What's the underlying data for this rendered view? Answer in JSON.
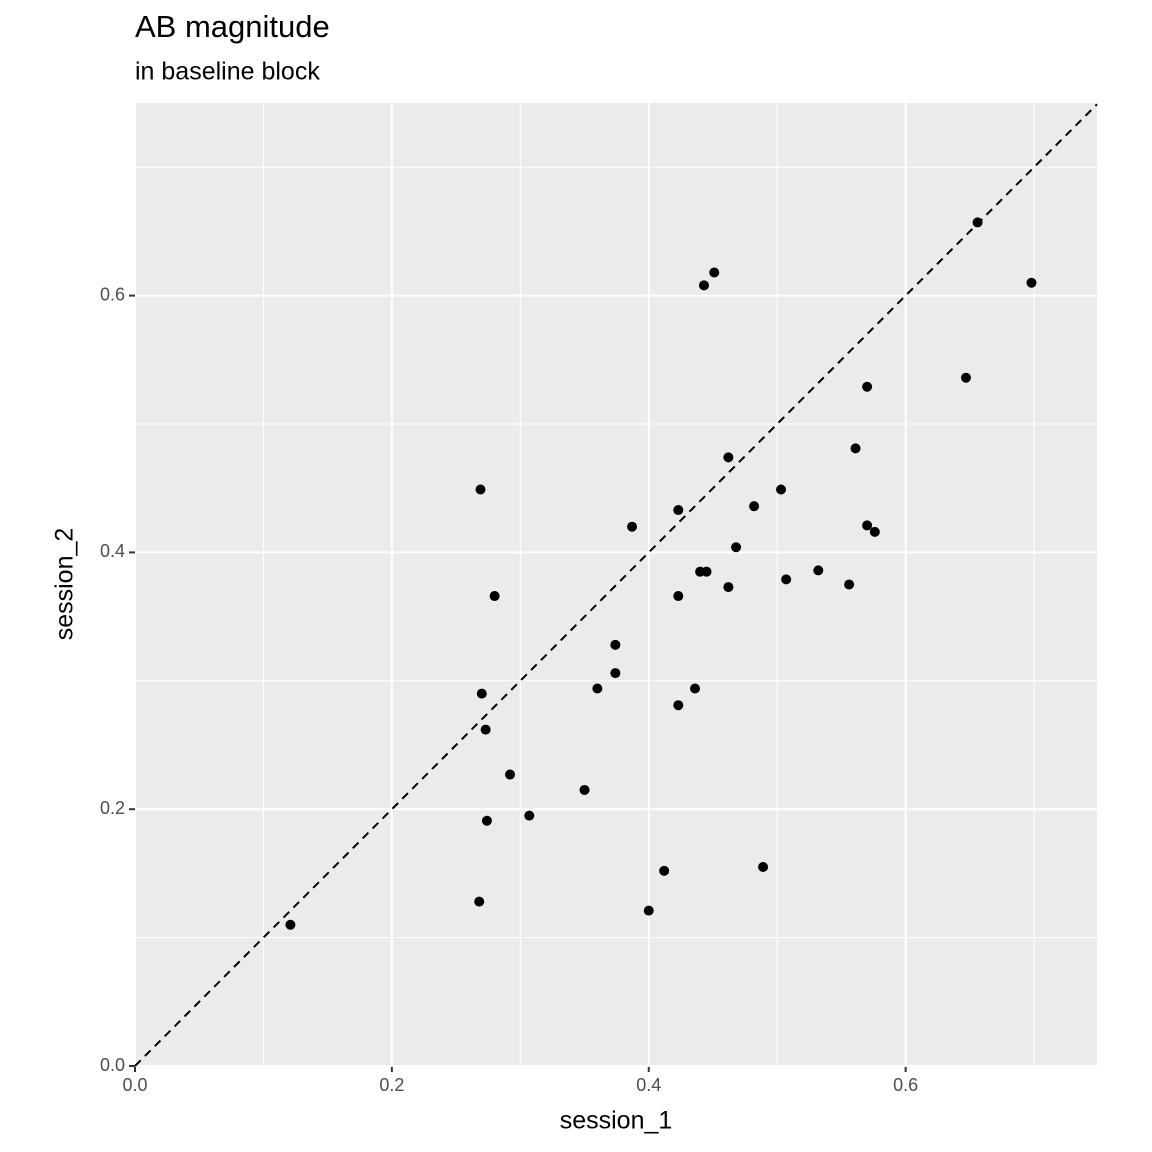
{
  "chart_data": {
    "type": "scatter",
    "title": "AB magnitude",
    "subtitle": "in baseline block",
    "x_label": "session_1",
    "y_label": "session_2",
    "x": [
      0.121,
      0.656,
      0.698,
      0.451,
      0.443,
      0.647,
      0.57,
      0.561,
      0.462,
      0.269,
      0.503,
      0.482,
      0.423,
      0.387,
      0.57,
      0.576,
      0.468,
      0.44,
      0.445,
      0.532,
      0.507,
      0.556,
      0.462,
      0.28,
      0.423,
      0.374,
      0.374,
      0.36,
      0.436,
      0.27,
      0.423,
      0.273,
      0.292,
      0.35,
      0.307,
      0.274,
      0.489,
      0.412,
      0.268,
      0.4
    ],
    "values": [
      0.11,
      0.657,
      0.61,
      0.618,
      0.608,
      0.536,
      0.529,
      0.481,
      0.474,
      0.449,
      0.449,
      0.436,
      0.433,
      0.42,
      0.421,
      0.416,
      0.404,
      0.385,
      0.385,
      0.386,
      0.379,
      0.375,
      0.373,
      0.366,
      0.366,
      0.328,
      0.306,
      0.294,
      0.294,
      0.29,
      0.281,
      0.262,
      0.227,
      0.215,
      0.195,
      0.191,
      0.155,
      0.152,
      0.128,
      0.121
    ],
    "color": "#000000",
    "xlim": [
      0,
      0.749
    ],
    "ylim": [
      0,
      0.75
    ],
    "xticks": [
      {
        "value": 0,
        "label": "0.0"
      },
      0.2,
      0.4,
      0.6
    ],
    "yticks": [
      {
        "value": 0,
        "label": "0.0"
      },
      0.2,
      0.4,
      0.6
    ],
    "minor_xticks": [
      0.1,
      0.3,
      0.5,
      0.7
    ],
    "minor_yticks": [
      0.1,
      0.3,
      0.5,
      0.7
    ],
    "grid": true,
    "identity_line": true
  }
}
